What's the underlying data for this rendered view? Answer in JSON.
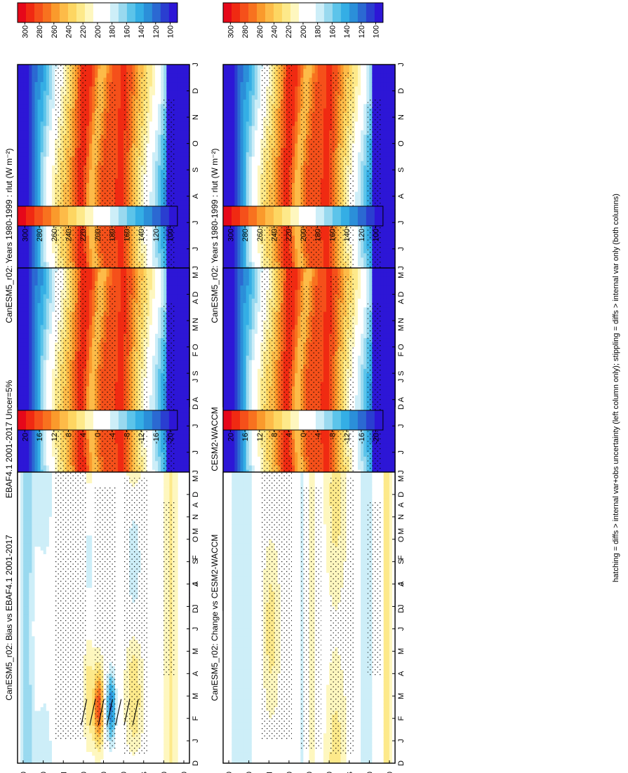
{
  "figure": {
    "footnote": "hatching = diffs > internal var+obs uncertainty (left column only); stippling = diffs > internal var only (both columns)"
  },
  "palettes": {
    "abs": [
      "#e6081a",
      "#f02a12",
      "#f5501a",
      "#f8721f",
      "#fa9a2c",
      "#fdbb48",
      "#fdd662",
      "#fde98a",
      "#fef7bf",
      "#ffffff",
      "#ffffff",
      "#cdeef8",
      "#99d9ef",
      "#5cc4ea",
      "#34aee5",
      "#2b8fd9",
      "#2b69d2",
      "#2a3ed0",
      "#2d16d6"
    ],
    "diff": [
      "#e6081a",
      "#f02a12",
      "#f5501a",
      "#f8721f",
      "#fa9a2c",
      "#fdbb48",
      "#fdd662",
      "#fde98a",
      "#fef7bf",
      "#ffffff",
      "#ffffff",
      "#cdeef8",
      "#99d9ef",
      "#5cc4ea",
      "#34aee5",
      "#2b8fd9",
      "#2b69d2",
      "#2a3ed0",
      "#2d16d6"
    ]
  },
  "chart_data": [
    {
      "id": "top-left",
      "type": "heatmap",
      "title": "CanESM5_r02: Years 1980-1999 : rlut (W m⁻²)",
      "field": "abs",
      "x_ticks": [
        "D",
        "J",
        "F",
        "M",
        "A",
        "M",
        "J",
        "J",
        "A",
        "S",
        "O",
        "N",
        "D",
        "J"
      ],
      "y_ticks": [
        "80",
        "60",
        "°N",
        "20",
        "0",
        "20",
        "°S",
        "60",
        "80"
      ],
      "colorbar": {
        "ticks": [
          "300",
          "280",
          "260",
          "240",
          "220",
          "200",
          "180",
          "160",
          "140",
          "120",
          "100"
        ],
        "range": [
          90,
          320
        ],
        "palette": "abs"
      },
      "hatched": true,
      "stippled": true
    },
    {
      "id": "top-right",
      "type": "heatmap",
      "title": "CanESM5_r02: Years 1980-1999 : rlut (W m⁻²)",
      "field": "abs",
      "x_ticks": [
        "D",
        "J",
        "F",
        "M",
        "A",
        "M",
        "J",
        "J",
        "A",
        "S",
        "O",
        "N",
        "D",
        "J"
      ],
      "y_ticks": [
        "80",
        "60",
        "°N",
        "20",
        "0",
        "20",
        "°S",
        "60",
        "80"
      ],
      "colorbar": {
        "ticks": [
          "300",
          "280",
          "260",
          "240",
          "220",
          "200",
          "180",
          "160",
          "140",
          "120",
          "100"
        ],
        "range": [
          90,
          320
        ],
        "palette": "abs"
      },
      "hatched": false,
      "stippled": true
    },
    {
      "id": "mid-left",
      "type": "heatmap",
      "title": "EBAF4.1 2001-2017 Uncer=5%",
      "field": "abs",
      "x_ticks": [
        "D",
        "J",
        "F",
        "M",
        "A",
        "M",
        "J",
        "J",
        "A",
        "S",
        "O",
        "N",
        "D",
        "J"
      ],
      "y_ticks": [
        "80",
        "60",
        "°N",
        "20",
        "0",
        "20",
        "°S",
        "60",
        "80"
      ],
      "colorbar": {
        "ticks": [
          "300",
          "280",
          "260",
          "240",
          "220",
          "200",
          "180",
          "160",
          "140",
          "120",
          "100"
        ],
        "range": [
          90,
          320
        ],
        "palette": "abs"
      },
      "hatched": true,
      "stippled": true
    },
    {
      "id": "mid-right",
      "type": "heatmap",
      "title": "CESM2-WACCM",
      "field": "abs",
      "x_ticks": [
        "D",
        "J",
        "F",
        "M",
        "A",
        "M",
        "J",
        "J",
        "A",
        "S",
        "O",
        "N",
        "D",
        "J"
      ],
      "y_ticks": [
        "80",
        "60",
        "°N",
        "20",
        "0",
        "20",
        "°S",
        "60",
        "80"
      ],
      "colorbar": {
        "ticks": [
          "300",
          "280",
          "260",
          "240",
          "220",
          "200",
          "180",
          "160",
          "140",
          "120",
          "100"
        ],
        "range": [
          90,
          320
        ],
        "palette": "abs"
      },
      "hatched": false,
      "stippled": true
    },
    {
      "id": "bottom-left",
      "type": "heatmap",
      "title": "CanESM5_r02: Bias vs EBAF4.1 2001-2017",
      "field": "bias",
      "x_ticks": [
        "D",
        "J",
        "F",
        "M",
        "A",
        "M",
        "J",
        "J",
        "A",
        "S",
        "O",
        "N",
        "D",
        "J"
      ],
      "y_ticks": [
        "80",
        "60",
        "°N",
        "20",
        "0",
        "20",
        "°S",
        "60",
        "80"
      ],
      "colorbar": {
        "ticks": [
          "20",
          "16",
          "12",
          "8",
          "4",
          "0",
          "-4",
          "-8",
          "-12",
          "-16",
          "-20"
        ],
        "range": [
          -23,
          23
        ],
        "palette": "diff"
      },
      "hatched": true,
      "stippled": true
    },
    {
      "id": "bottom-right",
      "type": "heatmap",
      "title": "CanESM5_r02: Change vs CESM2-WACCM",
      "field": "change",
      "x_ticks": [
        "D",
        "J",
        "F",
        "M",
        "A",
        "M",
        "J",
        "J",
        "A",
        "S",
        "O",
        "N",
        "D",
        "J"
      ],
      "y_ticks": [
        "80",
        "60",
        "°N",
        "20",
        "0",
        "20",
        "°S",
        "60",
        "80"
      ],
      "colorbar": {
        "ticks": [
          "20",
          "16",
          "12",
          "8",
          "4",
          "0",
          "-4",
          "-8",
          "-12",
          "-16",
          "-20"
        ],
        "range": [
          -23,
          23
        ],
        "palette": "diff"
      },
      "hatched": false,
      "stippled": true
    }
  ]
}
